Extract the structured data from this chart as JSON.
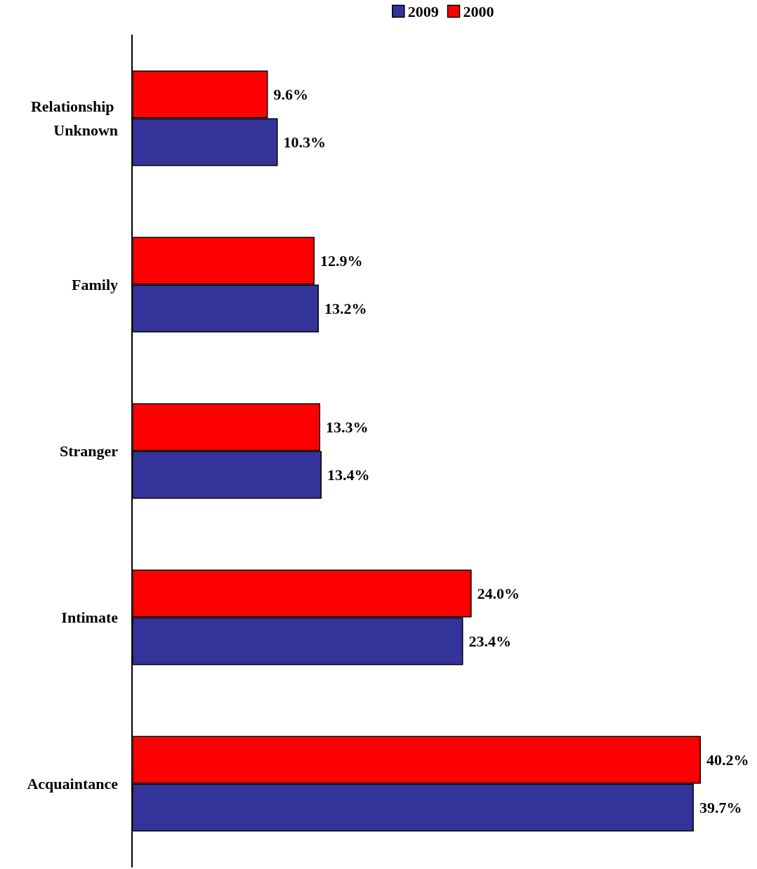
{
  "chart_data": {
    "type": "bar",
    "orientation": "horizontal",
    "categories": [
      "Relationship Unknown",
      "Family",
      "Stranger",
      "Intimate",
      "Acquaintance"
    ],
    "series": [
      {
        "name": "2009",
        "color": "#333399",
        "values": [
          10.3,
          13.2,
          13.4,
          23.4,
          39.7
        ],
        "value_labels": [
          "10.3%",
          "13.2%",
          "13.4%",
          "23.4%",
          "39.7%"
        ]
      },
      {
        "name": "2000",
        "color": "#ff0000",
        "values": [
          9.6,
          12.9,
          13.3,
          24.0,
          40.2
        ],
        "value_labels": [
          "9.6%",
          "12.9%",
          "13.3%",
          "24.0%",
          "40.2%"
        ]
      }
    ],
    "legend": "top",
    "tick_labels": "y"
  }
}
